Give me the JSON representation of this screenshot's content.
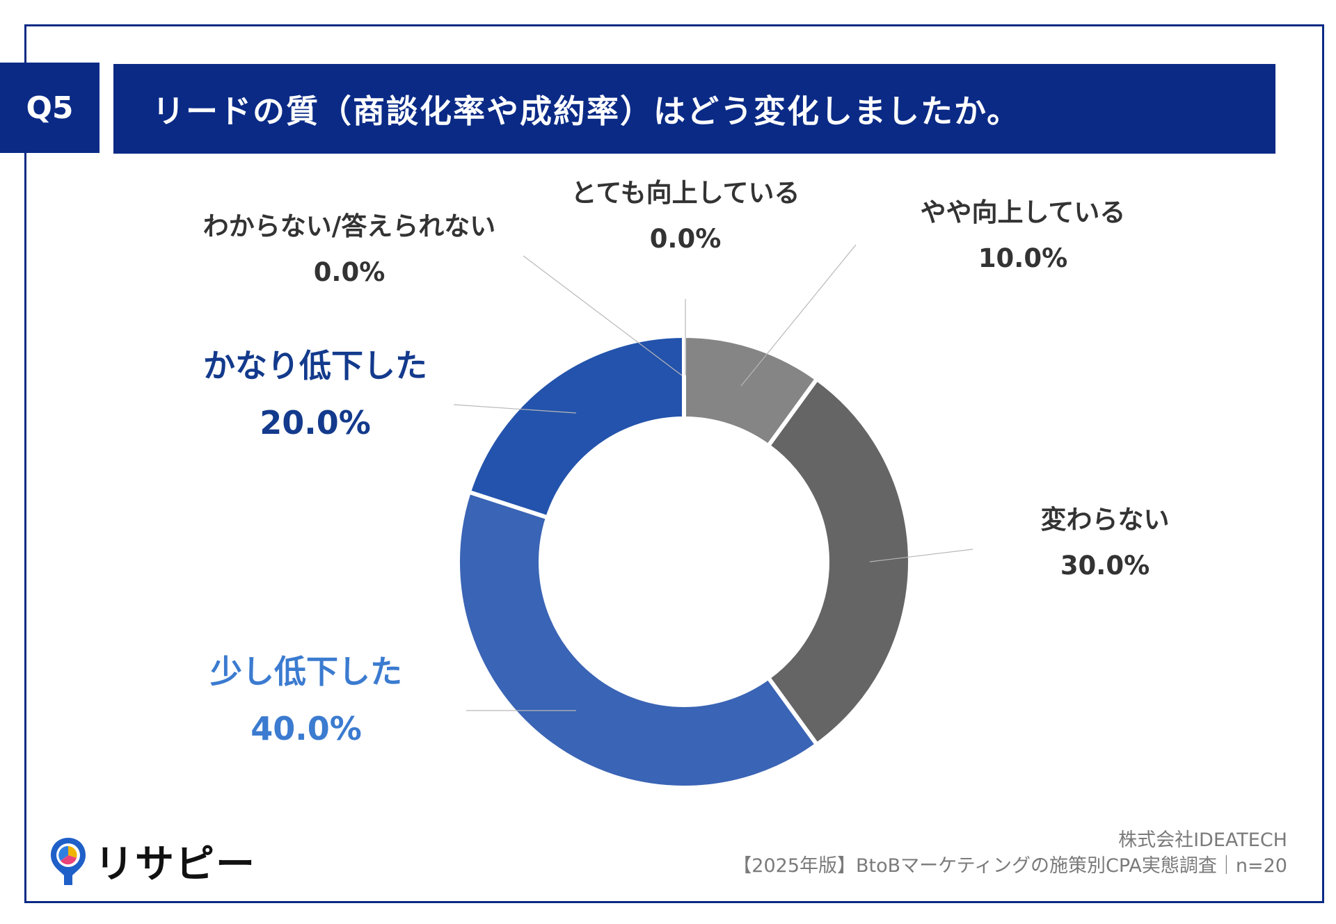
{
  "header": {
    "badge": "Q5",
    "title": "リードの質（商談化率や成約率）はどう変化しましたか。"
  },
  "chart_data": {
    "type": "donut",
    "title": "リードの質（商談化率や成約率）はどう変化しましたか。",
    "slices": [
      {
        "label": "とても向上している",
        "value": 0.0,
        "display": "0.0%",
        "color": "#6a6a6a",
        "label_color": "#333333"
      },
      {
        "label": "やや向上している",
        "value": 10.0,
        "display": "10.0%",
        "color": "#858585",
        "label_color": "#333333"
      },
      {
        "label": "変わらない",
        "value": 30.0,
        "display": "30.0%",
        "color": "#656565",
        "label_color": "#333333"
      },
      {
        "label": "少し低下した",
        "value": 40.0,
        "display": "40.0%",
        "color": "#3a64b5",
        "label_color": "#3b7bd0"
      },
      {
        "label": "かなり低下した",
        "value": 20.0,
        "display": "20.0%",
        "color": "#2353ac",
        "label_color": "#133a8c"
      },
      {
        "label": "わからない/答えられない",
        "value": 0.0,
        "display": "0.0%",
        "color": "#2353ac",
        "label_color": "#333333"
      }
    ]
  },
  "footer": {
    "line1": "株式会社IDEATECH",
    "line2": "【2025年版】BtoBマーケティングの施策別CPA実態調査｜n=20"
  },
  "logo": {
    "text": "リサピー"
  }
}
